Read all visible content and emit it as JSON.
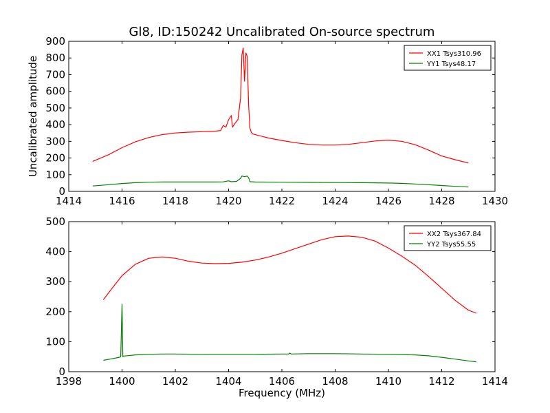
{
  "figure_title": "Gl8, ID:150242 Uncalibrated On-source spectrum",
  "chart_data": [
    {
      "type": "line",
      "title": "Gl8, ID:150242 Uncalibrated On-source spectrum",
      "xlabel": "",
      "ylabel": "Uncalibrated amplitude",
      "xlim": [
        1414,
        1430
      ],
      "ylim": [
        0,
        900
      ],
      "xticks": [
        "1414",
        "1416",
        "1418",
        "1420",
        "1422",
        "1424",
        "1426",
        "1428",
        "1430"
      ],
      "yticks": [
        "0",
        "100",
        "200",
        "300",
        "400",
        "500",
        "600",
        "700",
        "800",
        "900"
      ],
      "grid": false,
      "legend_position": "top-right",
      "series": [
        {
          "name": "XX1 Tsys310.96",
          "color": "#ff0000",
          "x": [
            1414.9,
            1415.5,
            1416.0,
            1416.5,
            1417.0,
            1417.5,
            1418.0,
            1418.5,
            1419.0,
            1419.5,
            1419.7,
            1419.8,
            1419.9,
            1420.0,
            1420.1,
            1420.15,
            1420.25,
            1420.35,
            1420.45,
            1420.5,
            1420.55,
            1420.6,
            1420.65,
            1420.7,
            1420.75,
            1420.8,
            1420.85,
            1420.9,
            1421.0,
            1421.5,
            1422.0,
            1422.5,
            1423.0,
            1423.5,
            1424.0,
            1424.5,
            1425.0,
            1425.5,
            1426.0,
            1426.5,
            1427.0,
            1427.5,
            1428.0,
            1428.5,
            1429.0
          ],
          "values": [
            180,
            220,
            262,
            297,
            323,
            340,
            350,
            355,
            358,
            361,
            365,
            395,
            385,
            430,
            455,
            385,
            410,
            430,
            560,
            820,
            860,
            660,
            830,
            810,
            520,
            380,
            355,
            345,
            340,
            320,
            305,
            292,
            282,
            278,
            278,
            282,
            292,
            302,
            307,
            300,
            280,
            248,
            212,
            190,
            170
          ]
        },
        {
          "name": "YY1 Tsys48.17",
          "color": "#008000",
          "x": [
            1414.9,
            1415.5,
            1416.0,
            1416.5,
            1417.0,
            1417.5,
            1418.0,
            1418.5,
            1419.0,
            1419.5,
            1419.8,
            1420.0,
            1420.1,
            1420.3,
            1420.45,
            1420.5,
            1420.6,
            1420.7,
            1420.75,
            1420.8,
            1421.0,
            1422.0,
            1423.0,
            1424.0,
            1425.0,
            1426.0,
            1426.5,
            1427.0,
            1427.5,
            1428.0,
            1428.5,
            1429.0
          ],
          "values": [
            32,
            40,
            47,
            52,
            55,
            56,
            56,
            56,
            56,
            56,
            57,
            63,
            58,
            60,
            78,
            92,
            88,
            92,
            82,
            58,
            56,
            55,
            54,
            53,
            52,
            50,
            48,
            44,
            40,
            35,
            30,
            26
          ]
        }
      ]
    },
    {
      "type": "line",
      "title": "",
      "xlabel": "Frequency (MHz)",
      "ylabel": "",
      "xlim": [
        1398,
        1414
      ],
      "ylim": [
        0,
        500
      ],
      "xticks": [
        "1398",
        "1400",
        "1402",
        "1404",
        "1406",
        "1408",
        "1410",
        "1412",
        "1414"
      ],
      "yticks": [
        "0",
        "100",
        "200",
        "300",
        "400",
        "500"
      ],
      "grid": false,
      "legend_position": "top-right",
      "series": [
        {
          "name": "XX2 Tsys367.84",
          "color": "#ff0000",
          "x": [
            1399.3,
            1399.6,
            1400.0,
            1400.5,
            1401.0,
            1401.5,
            1402.0,
            1402.5,
            1403.0,
            1403.5,
            1404.0,
            1404.5,
            1405.0,
            1405.5,
            1406.0,
            1406.5,
            1407.0,
            1407.5,
            1408.0,
            1408.5,
            1409.0,
            1409.5,
            1410.0,
            1410.5,
            1411.0,
            1411.5,
            1412.0,
            1412.5,
            1413.0,
            1413.3
          ],
          "values": [
            240,
            275,
            320,
            358,
            378,
            382,
            378,
            368,
            362,
            360,
            361,
            365,
            372,
            382,
            395,
            410,
            425,
            440,
            450,
            452,
            448,
            435,
            412,
            385,
            355,
            318,
            278,
            238,
            205,
            195
          ]
        },
        {
          "name": "YY2 Tsys55.55",
          "color": "#008000",
          "x": [
            1399.3,
            1399.6,
            1399.9,
            1399.95,
            1400.0,
            1400.03,
            1400.06,
            1400.5,
            1401.0,
            1401.5,
            1402.0,
            1403.0,
            1404.0,
            1405.0,
            1406.0,
            1406.25,
            1406.3,
            1406.35,
            1407.0,
            1408.0,
            1409.0,
            1410.0,
            1411.0,
            1411.5,
            1412.0,
            1412.5,
            1413.0,
            1413.3
          ],
          "values": [
            38,
            43,
            48,
            50,
            225,
            50,
            52,
            56,
            58,
            59,
            59,
            58,
            58,
            58,
            59,
            59,
            62,
            59,
            60,
            60,
            59,
            58,
            56,
            53,
            48,
            42,
            36,
            33
          ]
        }
      ]
    }
  ]
}
